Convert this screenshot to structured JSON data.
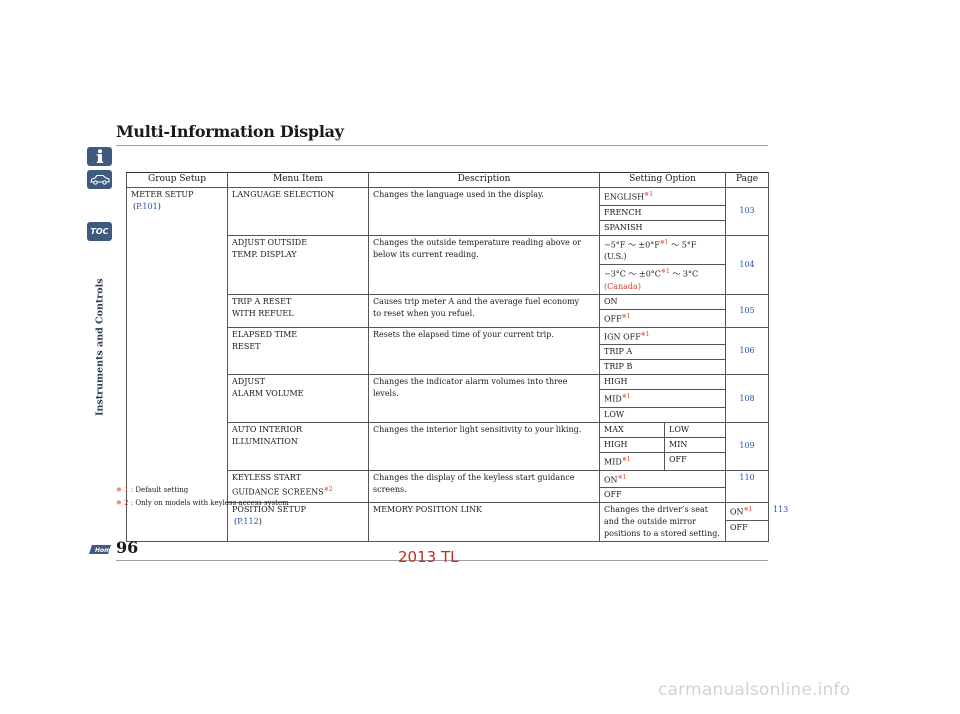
{
  "header": {
    "title": "Multi-Information Display"
  },
  "sidebar": {
    "toc_label": "TOC",
    "section_label": "Instruments and Controls"
  },
  "table": {
    "headers": [
      "Group Setup",
      "Menu Item",
      "Description",
      "Setting Option",
      "Page"
    ],
    "groups": {
      "meter": {
        "name": "METER SETUP",
        "link": "P.101"
      },
      "position": {
        "name": "POSITION SETUP",
        "link": "P.112"
      }
    },
    "rows": {
      "language": {
        "item": [
          "LANGUAGE SELECTION"
        ],
        "desc": [
          "Changes the language used in the display."
        ],
        "options": [
          "ENGLISH",
          "FRENCH",
          "SPANISH"
        ],
        "page": "103"
      },
      "outside": {
        "item": [
          "ADJUST OUTSIDE",
          "TEMP. DISPLAY"
        ],
        "desc": [
          "Changes the outside temperature reading above or",
          "below its current reading."
        ],
        "us_range_a": "−5°F ～ ±0°F",
        "us_range_b": " ～ 5°F",
        "us_note": "(U.S.)",
        "ca_range_a": "−3°C ～ ±0°C",
        "ca_range_b": " ～ 3°C",
        "ca_note": "(Canada)",
        "page": "104"
      },
      "tripa": {
        "item": [
          "TRIP A RESET",
          "WITH REFUEL"
        ],
        "desc": [
          "Causes trip meter A and the average fuel economy",
          "to reset when you refuel."
        ],
        "options": [
          "ON",
          "OFF"
        ],
        "page": "105"
      },
      "elapsed": {
        "item": [
          "ELAPSED TIME",
          "RESET"
        ],
        "desc": [
          "Resets the elapsed time of your current trip."
        ],
        "options": [
          "IGN OFF",
          "TRIP A",
          "TRIP B"
        ],
        "page": "106"
      },
      "alarm": {
        "item": [
          "ADJUST",
          "ALARM VOLUME"
        ],
        "desc": [
          "Changes the indicator alarm volumes into three",
          "levels."
        ],
        "options": [
          "HIGH",
          "MID",
          "LOW"
        ],
        "page": "108"
      },
      "interior": {
        "item": [
          "AUTO INTERIOR",
          "ILLUMINATION"
        ],
        "desc": [
          "Changes the interior light sensitivity to your liking."
        ],
        "options_left": [
          "MAX",
          "HIGH",
          "MID"
        ],
        "options_right": [
          "LOW",
          "MIN",
          "OFF"
        ],
        "page": "109"
      },
      "keyless": {
        "item": [
          "KEYLESS START",
          "GUIDANCE SCREENS"
        ],
        "desc": [
          "Changes the display of the keyless start guidance",
          "screens."
        ],
        "options": [
          "ON",
          "OFF"
        ],
        "page": "110"
      },
      "memory": {
        "item": [
          "MEMORY POSITION LINK"
        ],
        "desc": [
          "Changes the driver’s seat and the outside mirror",
          "positions to a stored setting."
        ],
        "options": [
          "ON",
          "OFF"
        ],
        "page": "113"
      }
    },
    "star1": "✵1",
    "star2": "✵2"
  },
  "footnotes": [
    {
      "mark": "✵ 1 :",
      "text": "Default setting"
    },
    {
      "mark": "✵ 2 :",
      "text": "Only on models with keyless access system"
    }
  ],
  "footer": {
    "page_number": "96",
    "model": "2013 TL",
    "watermark": "carmanualsonline.info"
  },
  "colors": {
    "link": "#2a4fb8",
    "star": "#d9402c",
    "tab": "#3e5a7e"
  }
}
